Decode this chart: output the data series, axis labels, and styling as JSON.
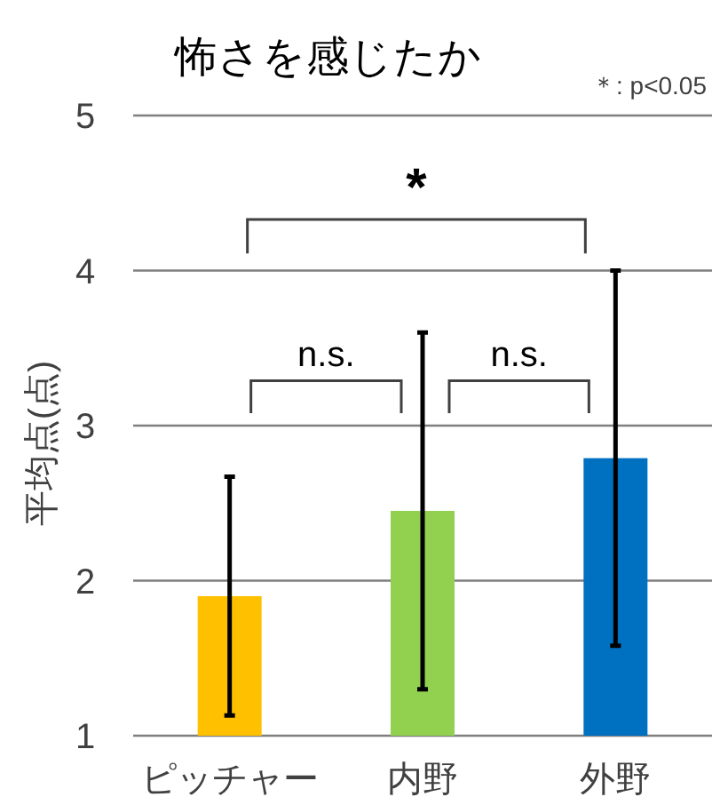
{
  "chart_data": {
    "type": "bar",
    "title": "怖さを感じたか",
    "ylabel": "平均点(点)",
    "categories": [
      "ピッチャー",
      "内野",
      "外野"
    ],
    "values": [
      1.9,
      2.45,
      2.79
    ],
    "errors": [
      0.77,
      1.15,
      1.21
    ],
    "colors": [
      "#ffc000",
      "#92d050",
      "#0070c0"
    ],
    "ylim": [
      1,
      5
    ],
    "yticks": [
      1,
      2,
      3,
      4,
      5
    ],
    "grid": "y",
    "annotations": [
      "n.s.",
      "n.s.",
      "*",
      "＊: p<0.05"
    ]
  }
}
